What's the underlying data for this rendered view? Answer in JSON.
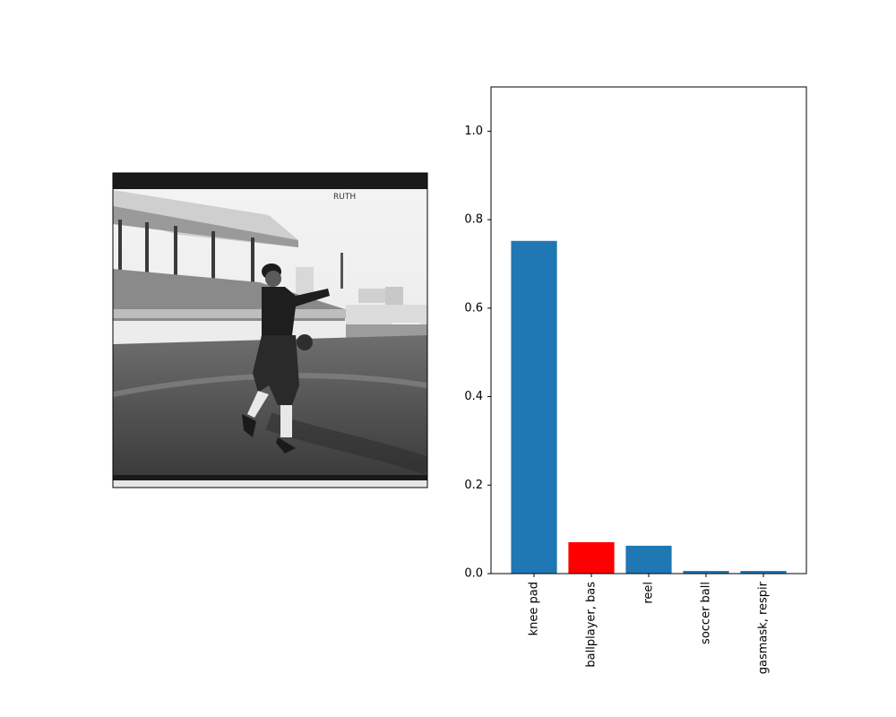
{
  "photo": {
    "description_icon": "baseball-player-photo-icon",
    "caption_text": "RUTH"
  },
  "chart_data": {
    "type": "bar",
    "categories": [
      "knee pad",
      "ballplayer, bas",
      "reel",
      "soccer ball",
      "gasmask, respir"
    ],
    "values": [
      0.752,
      0.071,
      0.063,
      0.006,
      0.006
    ],
    "colors": [
      "#1f77b4",
      "#ff0000",
      "#1f77b4",
      "#1f77b4",
      "#1f77b4"
    ],
    "ylim": [
      0,
      1.1
    ],
    "yticks": [
      0.0,
      0.2,
      0.4,
      0.6,
      0.8,
      1.0
    ],
    "ytick_labels": [
      "0.0",
      "0.2",
      "0.4",
      "0.6",
      "0.8",
      "1.0"
    ],
    "highlight_color": "#ff0000",
    "bar_color": "#1f77b4",
    "grid": false
  }
}
